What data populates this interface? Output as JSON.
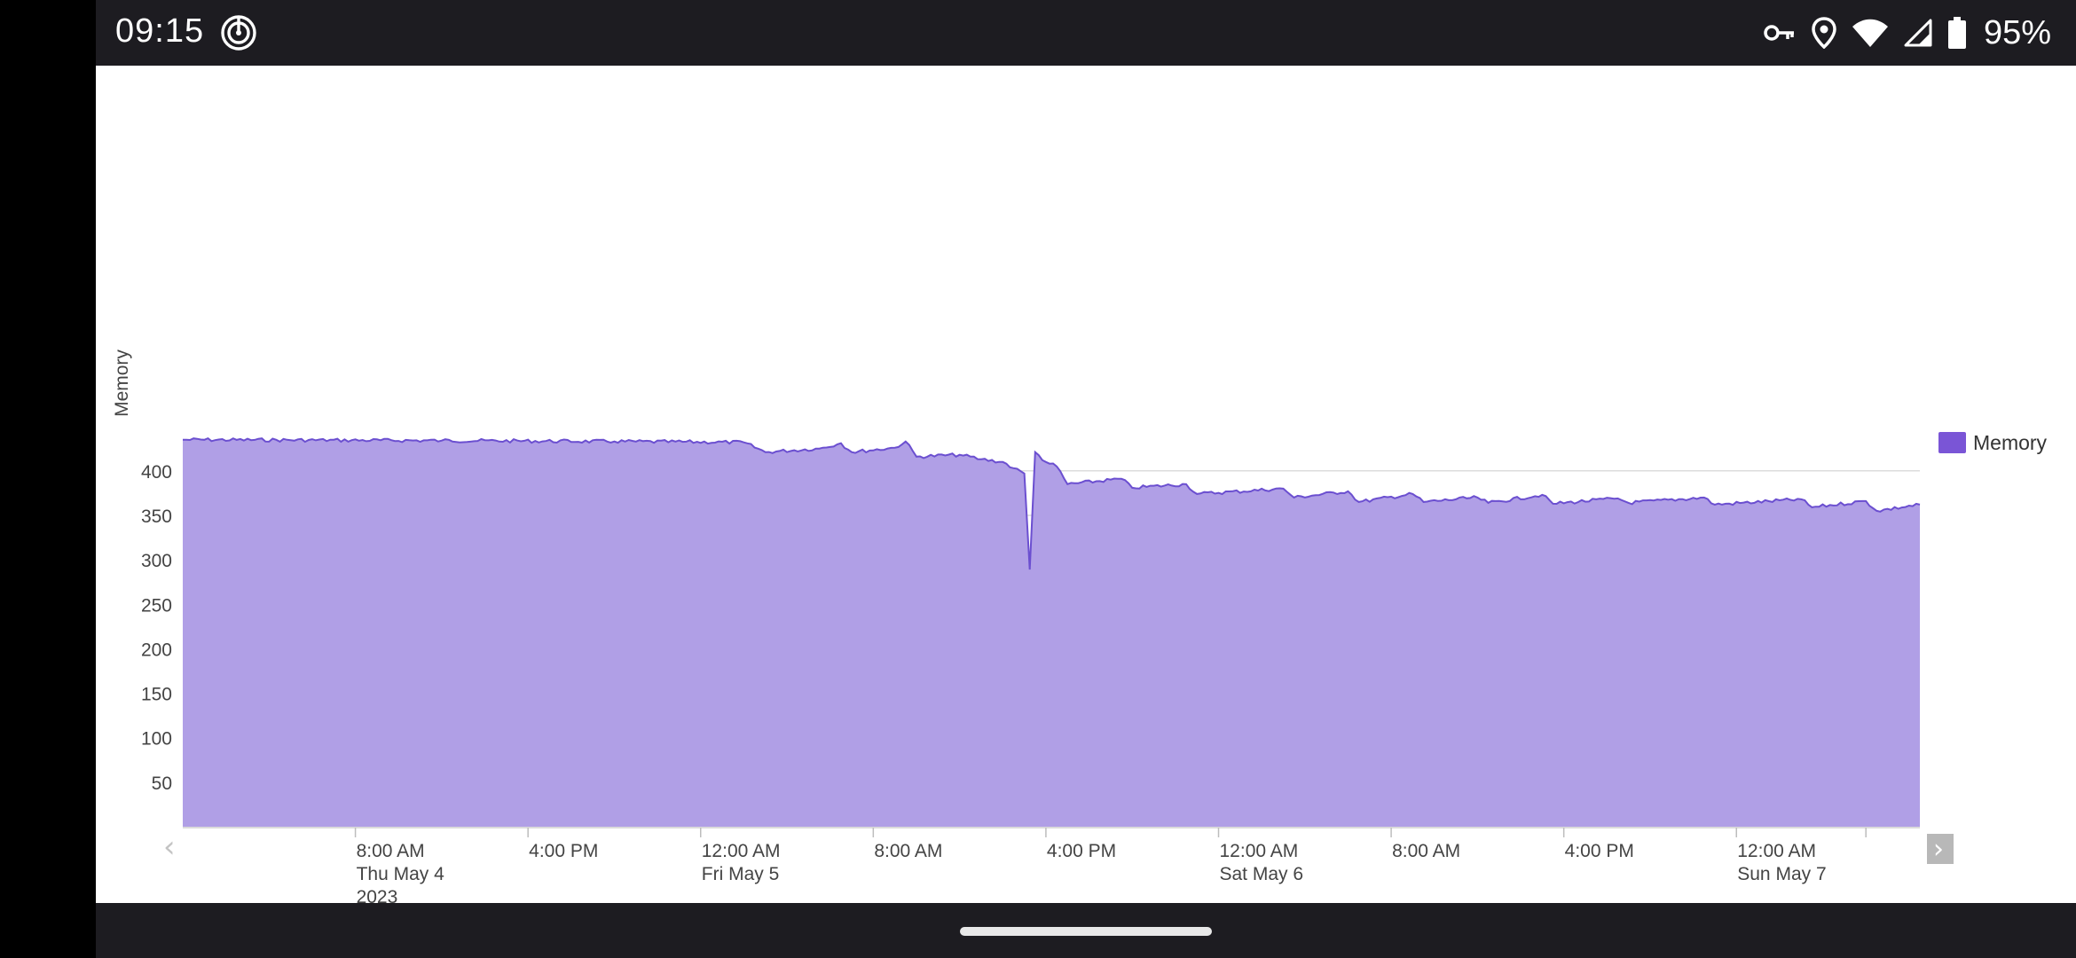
{
  "status_bar": {
    "time": "09:15",
    "battery_percent": "95%",
    "icons": [
      "target-icon",
      "key-icon",
      "location-icon",
      "wifi-icon",
      "signal-icon",
      "battery-icon"
    ]
  },
  "chart_data": {
    "type": "area",
    "ylabel": "Memory",
    "xlabel": "",
    "ylim": [
      0,
      430
    ],
    "y_ticks": [
      50,
      100,
      150,
      200,
      250,
      300,
      350,
      400
    ],
    "grid": true,
    "legend": {
      "position": "right",
      "entries": [
        {
          "name": "Memory",
          "color": "#7a55d6"
        }
      ]
    },
    "fill_color": "#b09fe6",
    "line_color": "#6b4fd0",
    "x_ticks": [
      {
        "time": "2023-05-04 08:00",
        "label": [
          "8:00 AM",
          "Thu May 4",
          "2023"
        ]
      },
      {
        "time": "2023-05-04 16:00",
        "label": [
          "4:00 PM"
        ]
      },
      {
        "time": "2023-05-05 00:00",
        "label": [
          "12:00 AM",
          "Fri May 5"
        ]
      },
      {
        "time": "2023-05-05 08:00",
        "label": [
          "8:00 AM"
        ]
      },
      {
        "time": "2023-05-05 16:00",
        "label": [
          "4:00 PM"
        ]
      },
      {
        "time": "2023-05-06 00:00",
        "label": [
          "12:00 AM",
          "Sat May 6"
        ]
      },
      {
        "time": "2023-05-06 08:00",
        "label": [
          "8:00 AM"
        ]
      },
      {
        "time": "2023-05-06 16:00",
        "label": [
          "4:00 PM"
        ]
      },
      {
        "time": "2023-05-07 00:00",
        "label": [
          "12:00 AM",
          "Sun May 7"
        ]
      },
      {
        "time": "2023-05-07 06:00",
        "label": []
      }
    ],
    "xlim": [
      "2023-05-04 00:00",
      "2023-05-07 08:30"
    ],
    "series": [
      {
        "name": "Memory",
        "points": [
          [
            "2023-05-04 00:00",
            435
          ],
          [
            "2023-05-04 12:00",
            434
          ],
          [
            "2023-05-04 20:00",
            433
          ],
          [
            "2023-05-05 02:00",
            432
          ],
          [
            "2023-05-05 03:00",
            421
          ],
          [
            "2023-05-05 05:30",
            425
          ],
          [
            "2023-05-05 06:30",
            431
          ],
          [
            "2023-05-05 07:00",
            421
          ],
          [
            "2023-05-05 09:00",
            426
          ],
          [
            "2023-05-05 09:30",
            433
          ],
          [
            "2023-05-05 10:00",
            416
          ],
          [
            "2023-05-05 12:00",
            418
          ],
          [
            "2023-05-05 13:00",
            413
          ],
          [
            "2023-05-05 14:00",
            410
          ],
          [
            "2023-05-05 14:30",
            403
          ],
          [
            "2023-05-05 15:00",
            397
          ],
          [
            "2023-05-05 15:15",
            289
          ],
          [
            "2023-05-05 15:30",
            421
          ],
          [
            "2023-05-05 16:00",
            410
          ],
          [
            "2023-05-05 16:30",
            405
          ],
          [
            "2023-05-05 17:00",
            385
          ],
          [
            "2023-05-05 19:30",
            391
          ],
          [
            "2023-05-05 20:00",
            381
          ],
          [
            "2023-05-05 22:30",
            385
          ],
          [
            "2023-05-05 23:00",
            374
          ],
          [
            "2023-05-06 03:00",
            380
          ],
          [
            "2023-05-06 03:30",
            370
          ],
          [
            "2023-05-06 06:00",
            377
          ],
          [
            "2023-05-06 06:30",
            365
          ],
          [
            "2023-05-06 09:00",
            374
          ],
          [
            "2023-05-06 09:30",
            365
          ],
          [
            "2023-05-06 12:00",
            370
          ],
          [
            "2023-05-06 12:30",
            364
          ],
          [
            "2023-05-06 15:00",
            373
          ],
          [
            "2023-05-06 15:30",
            363
          ],
          [
            "2023-05-06 18:30",
            369
          ],
          [
            "2023-05-06 19:00",
            364
          ],
          [
            "2023-05-06 22:30",
            370
          ],
          [
            "2023-05-06 23:00",
            362
          ],
          [
            "2023-05-07 03:00",
            368
          ],
          [
            "2023-05-07 03:30",
            359
          ],
          [
            "2023-05-07 06:00",
            366
          ],
          [
            "2023-05-07 06:30",
            355
          ],
          [
            "2023-05-07 08:30",
            362
          ]
        ]
      }
    ]
  },
  "pager": {
    "prev_glyph": "‹",
    "next_glyph": "›"
  }
}
